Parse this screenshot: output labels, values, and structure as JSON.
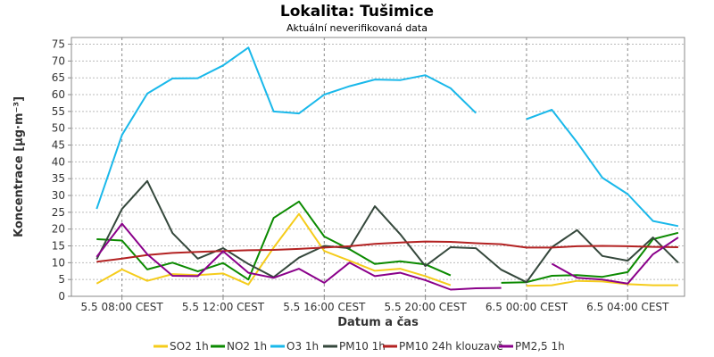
{
  "chart_data": {
    "type": "line",
    "title": "Lokalita: Tušimice",
    "subtitle": "Aktuální neverifikovaná data",
    "xlabel": "Datum a čas",
    "ylabel": "Koncentrace [µg·m⁻³]",
    "ylim": [
      0,
      77
    ],
    "yticks": [
      0,
      5,
      10,
      15,
      20,
      25,
      30,
      35,
      40,
      45,
      50,
      55,
      60,
      65,
      70,
      75
    ],
    "xlim_hours": [
      6,
      30.25
    ],
    "xtick_hours": [
      8,
      12,
      16,
      20,
      24,
      28
    ],
    "xtick_labels": [
      "5.5 08:00 CEST",
      "5.5 12:00 CEST",
      "5.5 16:00 CEST",
      "5.5 20:00 CEST",
      "6.5 00:00 CEST",
      "6.5 04:00 CEST"
    ],
    "grid": true,
    "legend_position": "bottom",
    "x": [
      7,
      8,
      9,
      10,
      11,
      12,
      13,
      14,
      15,
      16,
      17,
      18,
      19,
      20,
      21,
      22,
      23,
      24,
      25,
      26,
      27,
      28,
      29,
      30
    ],
    "series": [
      {
        "name": "SO2 1h",
        "color": "#f5cc1b",
        "values": [
          3.8,
          8.0,
          4.6,
          6.6,
          6.3,
          6.8,
          3.5,
          14.5,
          24.5,
          13.5,
          10.6,
          7.6,
          8.2,
          6.0,
          3.3,
          null,
          null,
          3.1,
          3.3,
          4.6,
          4.4,
          3.6,
          3.3,
          3.3
        ]
      },
      {
        "name": "NO2 1h",
        "color": "#0b8a00",
        "values": [
          17.0,
          16.6,
          8.0,
          10.0,
          7.4,
          9.9,
          5.0,
          23.3,
          28.2,
          17.8,
          14.0,
          9.6,
          10.4,
          9.5,
          6.2,
          null,
          4.0,
          4.2,
          6.1,
          6.3,
          5.8,
          7.2,
          17.0,
          18.9
        ]
      },
      {
        "name": "O3 1h",
        "color": "#19b8ea",
        "values": [
          26.0,
          48.0,
          60.3,
          64.8,
          64.9,
          68.7,
          74.0,
          55.0,
          54.4,
          60.0,
          62.5,
          64.5,
          64.3,
          65.8,
          61.9,
          54.5,
          null,
          52.7,
          55.5,
          45.8,
          35.3,
          30.4,
          22.4,
          20.9
        ]
      },
      {
        "name": "PM10 1h",
        "color": "#35483c",
        "values": [
          11.0,
          26.0,
          34.3,
          18.8,
          11.2,
          14.3,
          9.6,
          5.7,
          11.5,
          15.0,
          14.3,
          26.8,
          18.5,
          9.0,
          14.6,
          14.3,
          7.9,
          4.2,
          14.6,
          19.7,
          12.0,
          10.6,
          17.5,
          10.0
        ]
      },
      {
        "name": "PM10 24h klouzavě",
        "color": "#b32222",
        "values": [
          10.3,
          11.2,
          12.3,
          12.9,
          13.2,
          13.5,
          13.7,
          13.8,
          14.1,
          14.5,
          14.9,
          15.6,
          16.0,
          16.3,
          16.2,
          15.8,
          15.5,
          14.5,
          14.5,
          14.9,
          15.0,
          14.9,
          14.7,
          14.6
        ]
      },
      {
        "name": "PM2,5 1h",
        "color": "#8a008a",
        "values": [
          11.7,
          21.6,
          12.5,
          6.1,
          6.0,
          13.4,
          7.0,
          5.5,
          8.2,
          4.0,
          10.0,
          6.0,
          7.0,
          4.8,
          2.0,
          2.4,
          2.5,
          null,
          9.7,
          5.5,
          5.0,
          3.8,
          12.5,
          17.5
        ]
      }
    ]
  }
}
